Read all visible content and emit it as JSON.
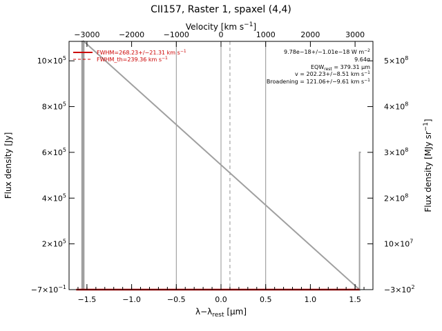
{
  "chart_data": {
    "type": "line",
    "title": "CII157, Raster 1, spaxel (4,4)",
    "xlabel": "λ−λ",
    "xlabel_sub": "rest",
    "xlabel_unit": " [μm]",
    "x2label": "Velocity [km s",
    "x2label_sup": "−1",
    "x2label_end": "]",
    "ylabel": "Flux density [Jy]",
    "y2label": "Flux density [MJy sr",
    "y2label_sup": "−1",
    "y2label_end": "]",
    "xlim": [
      -1.7,
      1.7
    ],
    "x2lim": [
      -3400,
      3400
    ],
    "ylim": [
      -0.7,
      1085000
    ],
    "xticks": [
      {
        "v": -1.5,
        "label": "−1.5"
      },
      {
        "v": -1.0,
        "label": "−1.0"
      },
      {
        "v": -0.5,
        "label": "−0.5"
      },
      {
        "v": 0.0,
        "label": "0.0"
      },
      {
        "v": 0.5,
        "label": "0.5"
      },
      {
        "v": 1.0,
        "label": "1.0"
      },
      {
        "v": 1.5,
        "label": "1.5"
      }
    ],
    "x2ticks": [
      {
        "v": -3000,
        "label": "−3000"
      },
      {
        "v": -2000,
        "label": "−2000"
      },
      {
        "v": -1000,
        "label": "−1000"
      },
      {
        "v": 0,
        "label": "0"
      },
      {
        "v": 1000,
        "label": "1000"
      },
      {
        "v": 2000,
        "label": "2000"
      },
      {
        "v": 3000,
        "label": "3000"
      }
    ],
    "yticks": [
      {
        "v": -0.7,
        "label": "−7×10",
        "sup": "−1"
      },
      {
        "v": 200000,
        "label": "2×10",
        "sup": "5"
      },
      {
        "v": 400000,
        "label": "4×10",
        "sup": "5"
      },
      {
        "v": 600000,
        "label": "6×10",
        "sup": "5"
      },
      {
        "v": 800000,
        "label": "8×10",
        "sup": "5"
      },
      {
        "v": 1000000,
        "label": "10×10",
        "sup": "5"
      }
    ],
    "y2ticks": [
      {
        "v": -0.7,
        "label": "−3×10",
        "sup": "2"
      },
      {
        "v": 200000,
        "label": "10×10",
        "sup": "7"
      },
      {
        "v": 400000,
        "label": "2×10",
        "sup": "8"
      },
      {
        "v": 600000,
        "label": "3×10",
        "sup": "8"
      },
      {
        "v": 800000,
        "label": "4×10",
        "sup": "8"
      },
      {
        "v": 1000000,
        "label": "5×10",
        "sup": "8"
      }
    ],
    "spectrum": {
      "color": "#a0a0a0",
      "x": [
        -1.56,
        -1.555,
        -1.555,
        -1.545,
        -1.545,
        -1.535,
        -1.535,
        1.55,
        1.55,
        1.565
      ],
      "y": [
        -0.7,
        -0.7,
        1085000,
        1085000,
        -0.7,
        -0.7,
        1085000,
        -0.7,
        600000,
        600000
      ]
    },
    "fit_line": {
      "color": "#cc0000",
      "x": [
        -1.62,
        1.55
      ],
      "y": [
        -0.7,
        -0.7
      ]
    },
    "vlines_solid": [
      -0.5,
      0.0,
      0.5
    ],
    "vline_dashed": 0.1,
    "legend": {
      "position": "top-left",
      "entries": [
        {
          "label": "FWHM=268.23+/−21.31 km s",
          "sup": "−1",
          "style": "solid"
        },
        {
          "label": "FWHM_th=239.36 km s",
          "sup": "−1",
          "style": "dashed"
        }
      ]
    },
    "annotations": [
      {
        "text": "9.78e−18+/−1.01e−18 W m",
        "sup": "−2",
        "sub": ""
      },
      {
        "text": "9.64σ",
        "sup": "",
        "sub": ""
      },
      {
        "text": "EQW",
        "sub": "rest",
        "tail": " = 379.31 μm"
      },
      {
        "text": "v = 202.23+/−8.51 km s",
        "sup": "−1",
        "sub": ""
      },
      {
        "text": "Broadening = 121.06+/−9.61 km s",
        "sup": "−1",
        "sub": ""
      }
    ]
  }
}
